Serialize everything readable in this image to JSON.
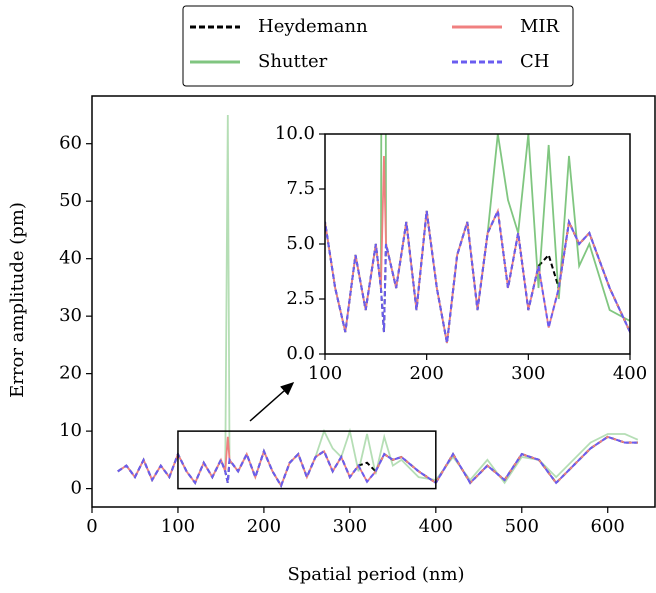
{
  "chart_data": {
    "type": "line",
    "xlabel": "Spatial period (nm)",
    "ylabel": "Error amplitude (pm)",
    "xlim": [
      0,
      655
    ],
    "ylim": [
      -3.2,
      68.3
    ],
    "xticks": [
      0,
      100,
      200,
      300,
      400,
      500,
      600
    ],
    "yticks": [
      0,
      10,
      20,
      30,
      40,
      50,
      60
    ],
    "x": [
      30,
      40,
      50,
      60,
      70,
      80,
      90,
      100,
      110,
      120,
      130,
      140,
      150,
      155,
      158,
      160,
      170,
      180,
      190,
      200,
      210,
      220,
      230,
      240,
      250,
      260,
      270,
      280,
      290,
      300,
      310,
      320,
      330,
      340,
      350,
      360,
      380,
      400,
      420,
      440,
      460,
      480,
      500,
      520,
      540,
      560,
      580,
      600,
      620,
      635
    ],
    "series": [
      {
        "name": "Heydemann",
        "color": "#000000",
        "style": "dashed",
        "values": [
          3,
          4,
          2,
          5,
          1.5,
          4,
          2,
          6,
          3,
          1,
          4.5,
          2,
          5,
          3,
          1,
          5,
          3,
          6,
          2,
          6.5,
          3,
          0.5,
          4.5,
          6,
          2,
          5.5,
          6.5,
          3,
          5.5,
          2,
          4,
          4.5,
          3,
          6,
          5,
          5.5,
          3,
          1,
          6,
          1,
          4,
          1.5,
          6,
          5,
          1,
          4,
          7,
          9,
          8,
          8
        ]
      },
      {
        "name": "Shutter",
        "color": "#2ca02c",
        "style": "solid",
        "values": [
          3,
          4,
          2,
          5,
          1.5,
          4,
          2,
          6,
          3,
          1,
          4.5,
          2,
          5,
          3,
          65,
          5,
          3,
          6,
          2,
          6.5,
          3,
          0.5,
          4.5,
          6,
          2,
          5.5,
          10,
          7,
          5.5,
          10,
          3,
          9.5,
          2.5,
          9,
          4,
          5,
          2,
          1.5,
          5.5,
          1.5,
          5,
          1,
          5.5,
          5,
          2,
          5,
          8,
          9.5,
          9.5,
          8.5
        ]
      },
      {
        "name": "MIR",
        "color": "#f08080",
        "style": "solid",
        "values": [
          3,
          4,
          2,
          5,
          1.5,
          4,
          2,
          6,
          3,
          1,
          4.5,
          2,
          5,
          3,
          9,
          5,
          3,
          6,
          2,
          6.5,
          3,
          0.5,
          4.5,
          6,
          2,
          5.5,
          6.5,
          3,
          5.5,
          2,
          4,
          1.2,
          3,
          6,
          5,
          5.5,
          3,
          1,
          6,
          1,
          4,
          1.5,
          6,
          5,
          1,
          4,
          7,
          9,
          8,
          8
        ]
      },
      {
        "name": "CH",
        "color": "#6a5cf0",
        "style": "dashed",
        "values": [
          3,
          4,
          2,
          5,
          1.5,
          4,
          2,
          6,
          3,
          1,
          4.5,
          2,
          5,
          3,
          1,
          5,
          3,
          6,
          2,
          6.5,
          3,
          0.5,
          4.5,
          6,
          2,
          5.5,
          6.5,
          3,
          5.5,
          2,
          4,
          1.2,
          3,
          6,
          5,
          5.5,
          3,
          1,
          6,
          1,
          4,
          1.5,
          6,
          5,
          1,
          4,
          7,
          9,
          8,
          8
        ]
      }
    ],
    "inset": {
      "xlim": [
        100,
        400
      ],
      "ylim": [
        0,
        10
      ],
      "xticks": [
        100,
        200,
        300,
        400
      ],
      "yticks": [
        {
          "value": 0,
          "label": "0.0"
        },
        2.5,
        {
          "value": 5,
          "label": "5.0"
        },
        7.5,
        {
          "value": 10,
          "label": "10.0"
        }
      ]
    }
  }
}
